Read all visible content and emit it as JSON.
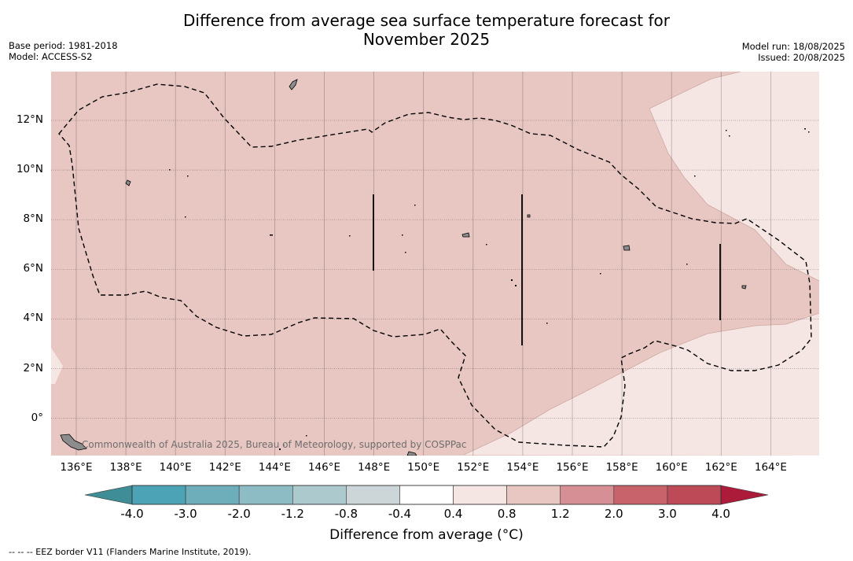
{
  "title_line1": "Difference from average sea surface temperature forecast for",
  "title_line2": "November 2025",
  "meta_left": [
    "Base period: 1981-2018",
    "Model: ACCESS-S2"
  ],
  "meta_right": [
    "Model run: 18/08/2025",
    "Issued: 20/08/2025"
  ],
  "credit": "Commonwealth of Australia 2025, Bureau of Meteorology, supported by COSPPac",
  "x_ticks": [
    "136°E",
    "138°E",
    "140°E",
    "142°E",
    "144°E",
    "146°E",
    "148°E",
    "150°E",
    "152°E",
    "154°E",
    "156°E",
    "158°E",
    "160°E",
    "162°E",
    "164°E"
  ],
  "y_ticks": [
    "12°N",
    "10°N",
    "8°N",
    "6°N",
    "4°N",
    "2°N",
    "0°"
  ],
  "colorbar": {
    "labels": [
      "-4.0",
      "-3.0",
      "-2.0",
      "-1.2",
      "-0.8",
      "-0.4",
      "0.4",
      "0.8",
      "1.2",
      "2.0",
      "3.0",
      "4.0"
    ],
    "colors": [
      "#4ba3b5",
      "#6eadba",
      "#8ebcc5",
      "#acc9cd",
      "#ccd6d8",
      "#ffffff",
      "#f5e6e4",
      "#e8c6c1",
      "#d68f94",
      "#c8636c",
      "#bd4a57"
    ],
    "under_color": "#3f8d96",
    "over_color": "#ac1c3a",
    "title": "Difference from average (°C)"
  },
  "footnote": "--  --  -- EEZ border V11 (Flanders Marine Institute, 2019).",
  "map_colors": {
    "warm_main": "#e8c6c1",
    "warm_light": "#f5e6e4",
    "land": "#8c8c8c"
  }
}
